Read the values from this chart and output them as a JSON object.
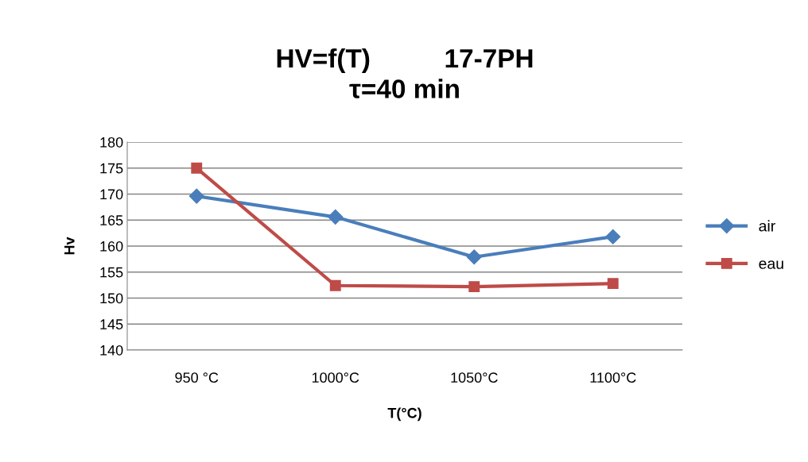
{
  "chart_data": {
    "type": "line",
    "title": "HV=f(T)          17-7PH\nτ=40 min",
    "xlabel": "T(°C)",
    "ylabel": "Hv",
    "categories": [
      "950 °C",
      "1000°C",
      "1050°C",
      "1100°C"
    ],
    "series": [
      {
        "name": "air",
        "color": "#4a7ebb",
        "marker": "diamond",
        "values": [
          169.6,
          165.6,
          157.9,
          161.8
        ]
      },
      {
        "name": "eau",
        "color": "#be4b48",
        "marker": "square",
        "values": [
          175,
          152.4,
          152.2,
          152.8
        ]
      }
    ],
    "ylim": [
      140,
      180
    ],
    "yticks": [
      140,
      145,
      150,
      155,
      160,
      165,
      170,
      175,
      180
    ],
    "grid": "y",
    "legend": "right",
    "line_style": "solid"
  }
}
